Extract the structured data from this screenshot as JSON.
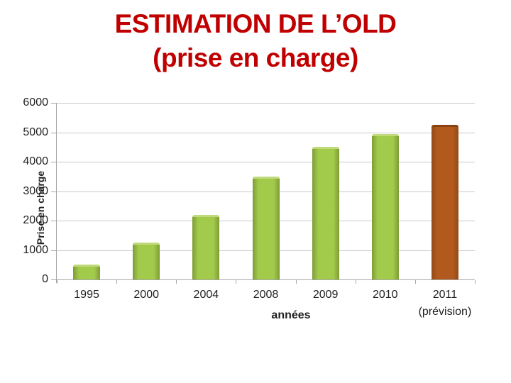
{
  "slide": {
    "title_line1": "ESTIMATION DE L’OLD",
    "title_line2": "(prise en charge)",
    "title_color": "#C00000"
  },
  "chart_data": {
    "type": "bar",
    "categories": [
      "1995",
      "2000",
      "2004",
      "2008",
      "2009",
      "2010",
      "2011"
    ],
    "category_sublabels": [
      "",
      "",
      "",
      "",
      "",
      "",
      "(prévision)"
    ],
    "values": [
      500,
      1250,
      2200,
      3500,
      4500,
      4950,
      5250
    ],
    "xlabel": "années",
    "ylabel": "Prise en charge",
    "ylim": [
      0,
      6000
    ],
    "ytick_step": 1000,
    "ytick_labels": [
      "0",
      "1000",
      "2000",
      "3000",
      "4000",
      "5000",
      "6000"
    ],
    "grid": true,
    "legend": false,
    "bar_styles": [
      {
        "name": "green",
        "fill": "#A3CB4B",
        "edge": "#7E9C37",
        "bevel": "#C0D97B"
      },
      {
        "name": "brown",
        "fill": "#B25A1D",
        "edge": "#934B17",
        "bevel": "#8A4210"
      }
    ],
    "bar_style_index": [
      0,
      0,
      0,
      0,
      0,
      0,
      1
    ],
    "colors": {
      "grid": "#C9C9C9",
      "axis": "#A6A6A6",
      "text": "#1F1F1F",
      "background": "#FFFFFF"
    }
  }
}
